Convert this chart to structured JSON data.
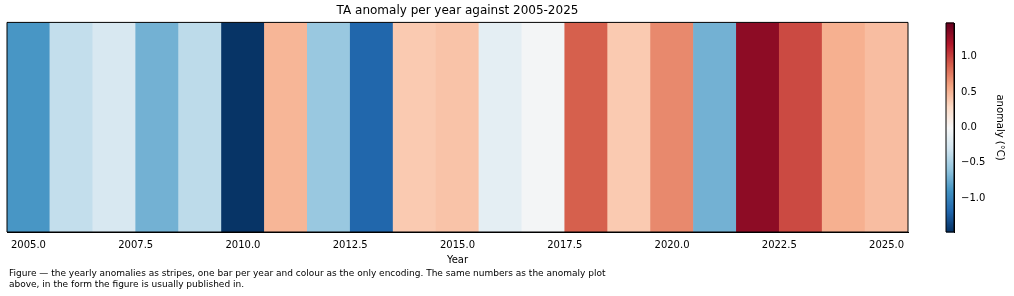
{
  "chart_data": {
    "type": "heatmap",
    "title": "TA anomaly per year against 2005-2025",
    "xlabel": "Year",
    "clabel": "anomaly (°C)",
    "x": [
      2005,
      2006,
      2007,
      2008,
      2009,
      2010,
      2011,
      2012,
      2013,
      2014,
      2015,
      2016,
      2017,
      2018,
      2019,
      2020,
      2021,
      2022,
      2023,
      2024,
      2025
    ],
    "y_categories": [
      null
    ],
    "cells": [
      [
        -0.87,
        -0.36,
        -0.24,
        -0.71,
        -0.39,
        -1.46,
        0.5,
        -0.56,
        -1.18,
        0.39,
        0.43,
        -0.15,
        -0.03,
        0.89,
        0.39,
        0.71,
        -0.71,
        1.33,
        0.98,
        0.53,
        0.46
      ]
    ],
    "xlim": [
      2004.5,
      2025.5
    ],
    "xticks": [
      {
        "value": 2005,
        "label": "2005.0"
      },
      {
        "value": 2007.5,
        "label": "2007.5"
      },
      {
        "value": 2010,
        "label": "2010.0"
      },
      {
        "value": 2012.5,
        "label": "2012.5"
      },
      {
        "value": 2015,
        "label": "2015.0"
      },
      {
        "value": 2017.5,
        "label": "2017.5"
      },
      {
        "value": 2020,
        "label": "2020.0"
      },
      {
        "value": 2022.5,
        "label": "2022.5"
      },
      {
        "value": 2025,
        "label": "2025.0"
      }
    ],
    "clim": [
      -1.48,
      1.48
    ],
    "cticks": [
      {
        "value": -1,
        "label": "−1.0"
      },
      {
        "value": -0.5,
        "label": "−0.5"
      },
      {
        "value": 0,
        "label": "0.0"
      },
      {
        "value": 0.5,
        "label": "0.5"
      },
      {
        "value": 1,
        "label": "1.0"
      }
    ],
    "tick_labels": "x",
    "annotations": [
      "Figure — the yearly anomalies as stripes, one bar per year and colour as the only encoding. The same numbers as the anomaly plot above, in the form the figure is usually published in."
    ]
  }
}
